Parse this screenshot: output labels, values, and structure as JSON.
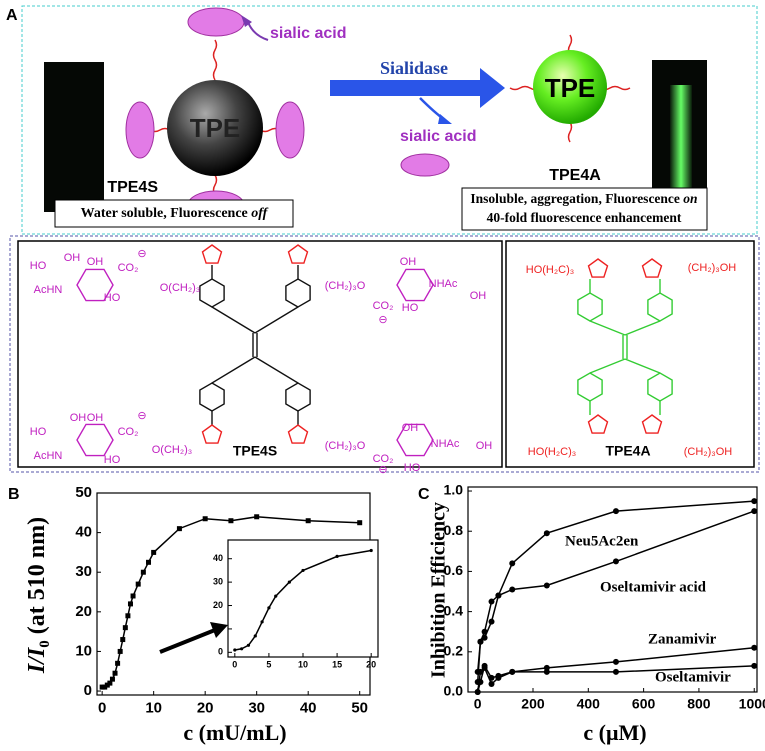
{
  "diagram": {
    "panel_label": "A",
    "sialic_acid": [
      "sialic acid",
      "sialic acid"
    ],
    "enzyme": "Sialidase",
    "core": [
      "TPE",
      "TPE"
    ],
    "names": [
      "TPE4S",
      "TPE4A"
    ],
    "left_caption": [
      "Water soluble,  Fluorescence ",
      "off"
    ],
    "right_caption": [
      "Insoluble, aggregation, Fluorescence ",
      "on",
      "40-fold fluorescence enhancement"
    ]
  },
  "structures": {
    "tpe4s": {
      "name": "TPE4S",
      "labels": [
        "HO",
        "OH",
        "OH",
        "CO₂",
        "⊖",
        "AcHN",
        "HO",
        "O(CH₂)₃",
        "(CH₂)₃O",
        "OH",
        "NHAc",
        "CO₂",
        "⊖",
        "HO",
        "OH",
        "HO",
        "OH",
        "OH",
        "CO₂",
        "⊖",
        "AcHN",
        "HO",
        "O(CH₂)₃",
        "(CH₂)₃O",
        "OH",
        "NHAc",
        "CO₂",
        "⊖",
        "HO",
        "OH"
      ]
    },
    "tpe4a": {
      "name": "TPE4A",
      "labels": [
        "HO(H₂C)₃",
        "(CH₂)₃OH",
        "HO(H₂C)₃",
        "(CH₂)₃OH"
      ]
    }
  },
  "chart_data": [
    {
      "type": "line",
      "panel_label": "B",
      "xlabel": "c (mU/mL)",
      "ylabel": [
        "I/I",
        "0",
        " (at 510 nm)"
      ],
      "x": [
        0,
        0.5,
        1,
        1.5,
        2,
        2.5,
        3,
        3.5,
        4,
        4.5,
        5,
        5.5,
        6,
        7,
        8,
        9,
        10,
        15,
        20,
        25,
        30,
        40,
        50
      ],
      "values": [
        1,
        1,
        1.5,
        2,
        3,
        4.5,
        7,
        10,
        13,
        16,
        19,
        22,
        24,
        27,
        30,
        32.5,
        35,
        41,
        43.5,
        43,
        44,
        43,
        42.5
      ],
      "color": "#000000",
      "xlim": [
        -1,
        52
      ],
      "ylim": [
        -1,
        50
      ],
      "xticks": [
        0,
        10,
        20,
        30,
        40,
        50
      ],
      "yticks": [
        0,
        10,
        20,
        30,
        40,
        50
      ]
    },
    {
      "type": "line",
      "x": [
        0,
        1,
        2,
        3,
        4,
        5,
        6,
        8,
        10,
        15,
        20
      ],
      "values": [
        1,
        1.5,
        3,
        7,
        13,
        19,
        24,
        30,
        35,
        41,
        43.5
      ],
      "color": "#000000",
      "xlim": [
        -1,
        21
      ],
      "ylim": [
        -2,
        48
      ],
      "xticks": [
        0,
        5,
        10,
        15,
        20
      ],
      "yticks": [
        0,
        10,
        20,
        30,
        40
      ]
    },
    {
      "type": "line",
      "panel_label": "C",
      "xlabel": "c (μM)",
      "ylabel": "Inhibition Efficiency",
      "x": [
        0,
        10,
        25,
        50,
        75,
        125,
        250,
        500,
        1000
      ],
      "series": [
        {
          "name": "Neu5Ac2en",
          "color": "#000000",
          "values": [
            0.05,
            0.25,
            0.27,
            0.35,
            0.48,
            0.64,
            0.79,
            0.9,
            0.95
          ]
        },
        {
          "name": "Oseltamivir acid",
          "color": "#000000",
          "values": [
            0.1,
            0.25,
            0.3,
            0.45,
            0.48,
            0.51,
            0.53,
            0.65,
            0.9
          ]
        },
        {
          "name": "Zanamivir",
          "color": "#000000",
          "values": [
            0.0,
            0.1,
            0.12,
            0.04,
            0.07,
            0.1,
            0.12,
            0.15,
            0.22
          ]
        },
        {
          "name": "Oseltamivir",
          "color": "#000000",
          "values": [
            0.0,
            0.05,
            0.13,
            0.07,
            0.08,
            0.1,
            0.1,
            0.1,
            0.13
          ]
        }
      ],
      "xlim": [
        -35,
        1010
      ],
      "ylim": [
        0,
        1.02
      ],
      "xticks": [
        0,
        200,
        400,
        600,
        800,
        1000
      ],
      "yticks": [
        {
          "value": 0,
          "label": "0.0"
        },
        0.2,
        0.4,
        0.6,
        0.8,
        {
          "value": 1,
          "label": "1.0"
        }
      ]
    }
  ]
}
